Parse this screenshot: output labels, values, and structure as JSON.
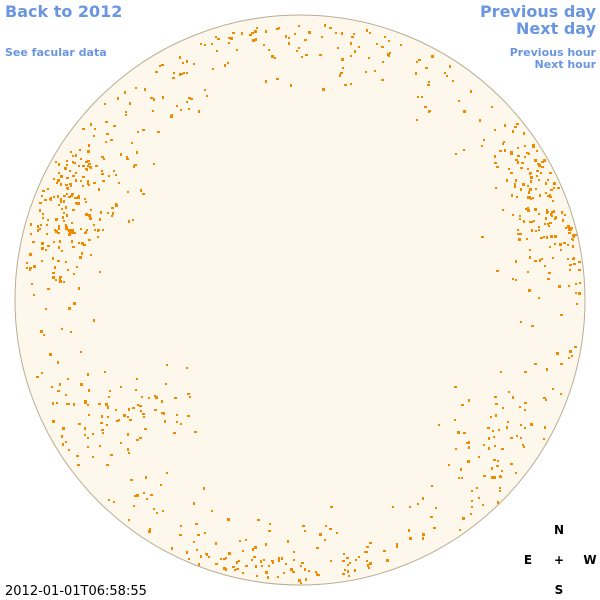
{
  "nav": {
    "back": "Back to 2012",
    "facular_data": "See facular data",
    "previous_day": "Previous day",
    "next_day": "Next day",
    "previous_hour": "Previous hour",
    "next_hour": "Next hour"
  },
  "timestamp": "2012-01-01T06:58:55",
  "compass": {
    "north": "N",
    "east": "E",
    "center": "+",
    "west": "W",
    "south": "S"
  }
}
